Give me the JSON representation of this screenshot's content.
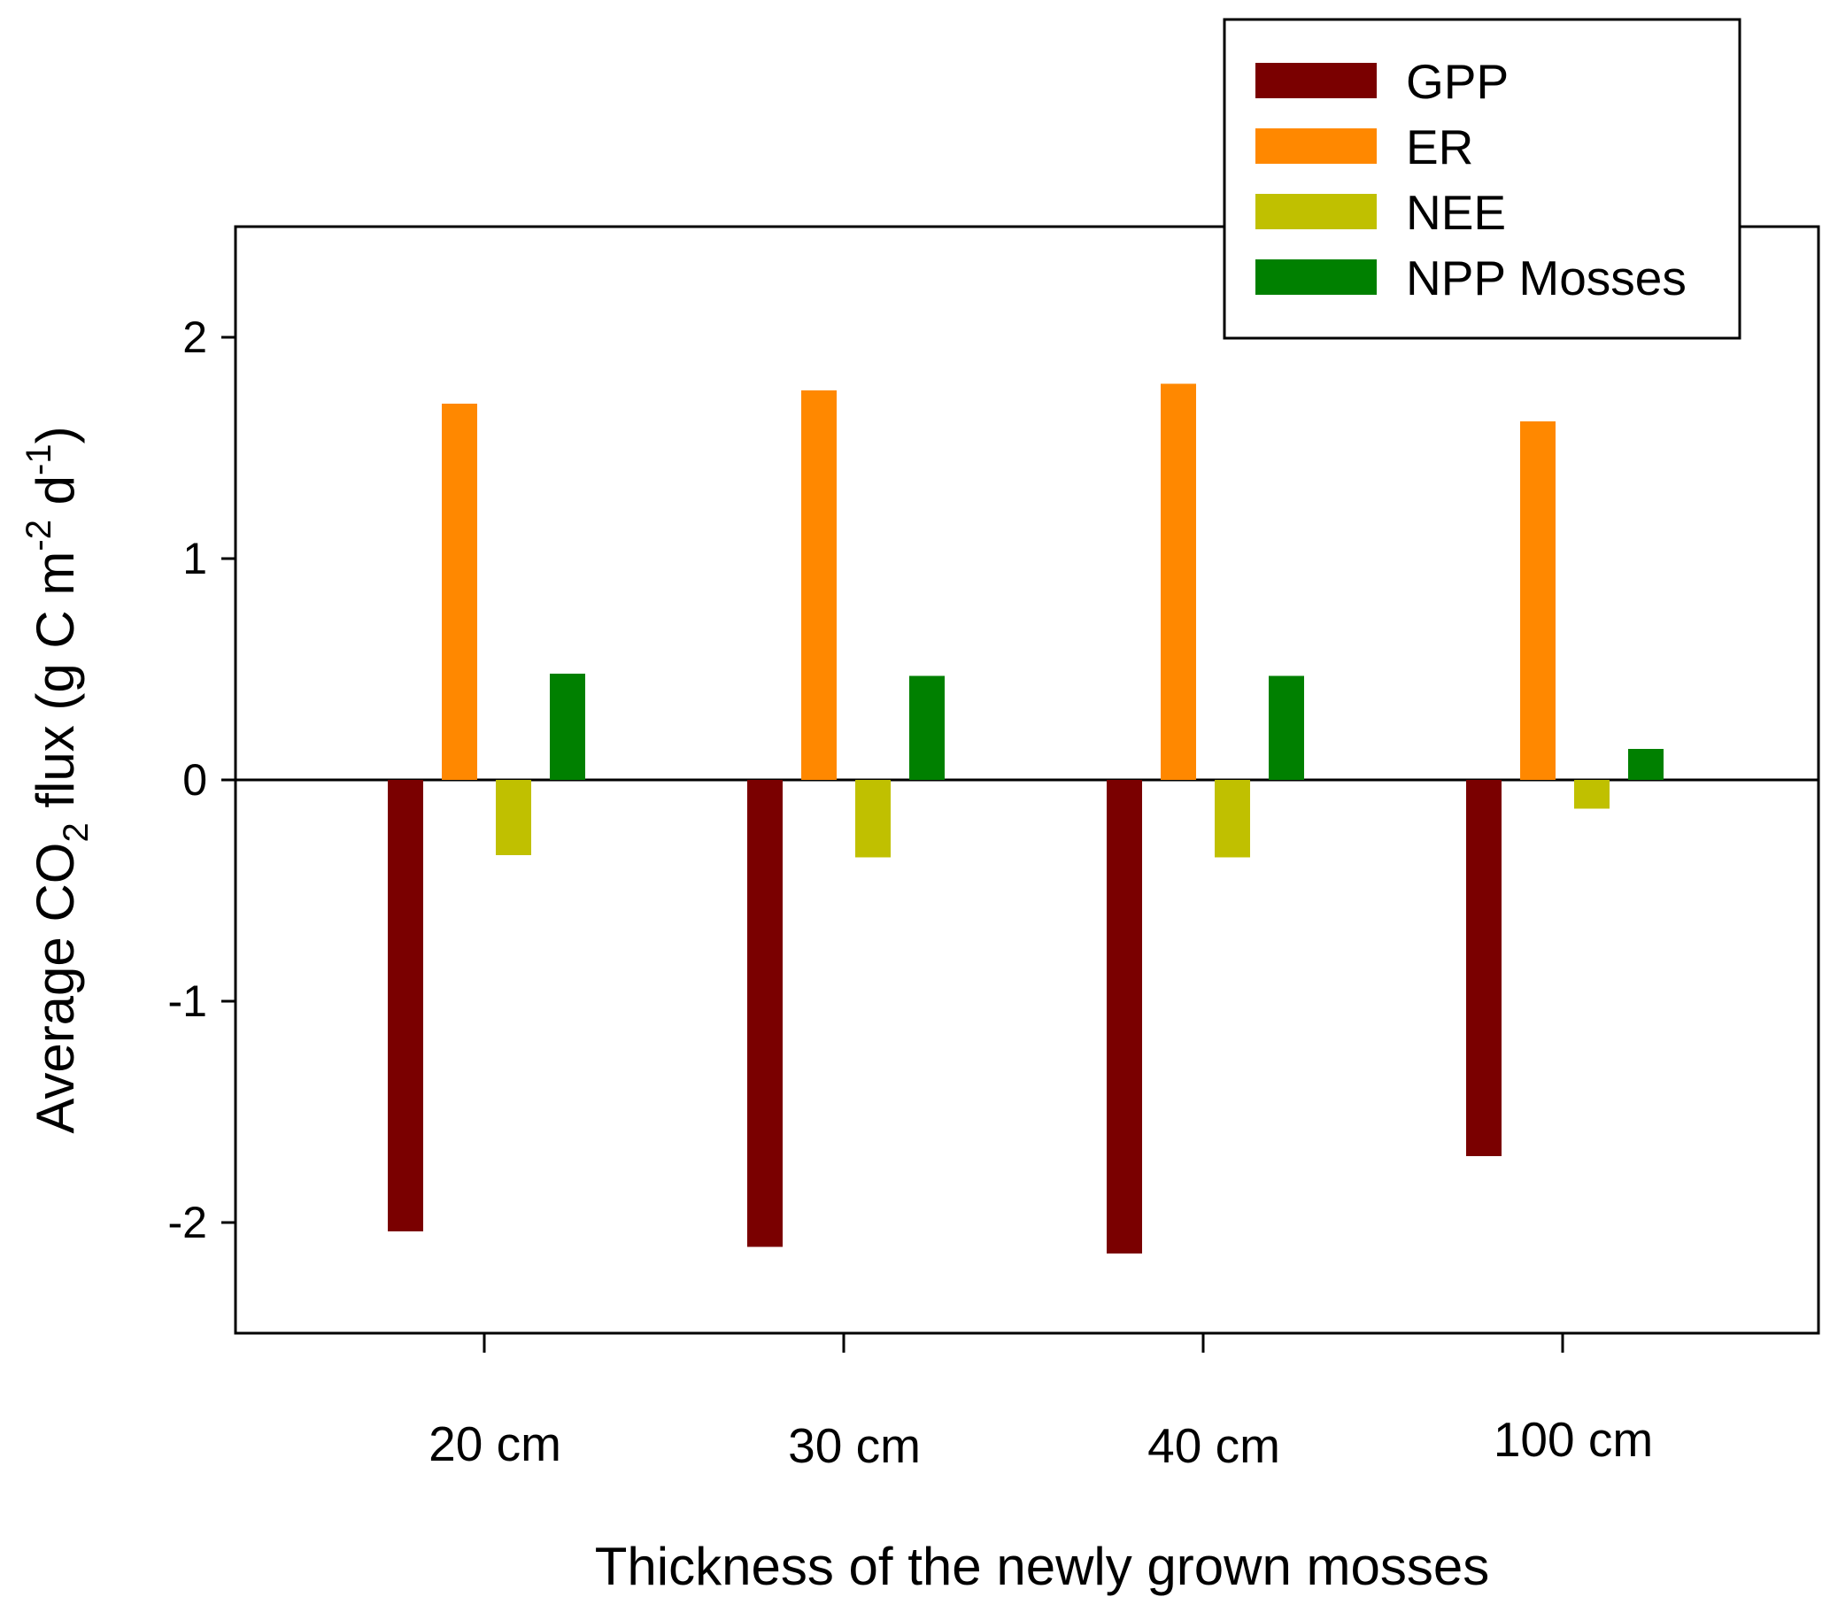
{
  "chart_data": {
    "type": "bar",
    "title": "",
    "xlabel": "Thickness of the newly grown mosses",
    "ylabel": {
      "prefix": "Average CO",
      "sub": "2",
      "middle": " flux (g C m",
      "sup1": "-2",
      "middle2": " d",
      "sup2": "-1",
      "suffix": ")"
    },
    "categories": [
      "20 cm",
      "30 cm",
      "40 cm",
      "100 cm"
    ],
    "ylim": [
      -2.5,
      2.5
    ],
    "yticks": [
      {
        "value": -2,
        "label": "-2"
      },
      {
        "value": -1,
        "label": "-1"
      },
      {
        "value": 0,
        "label": "0"
      },
      {
        "value": 1,
        "label": "1"
      },
      {
        "value": 2,
        "label": "2"
      }
    ],
    "grid": false,
    "zero_line": true,
    "legend_position": "top-right",
    "series": [
      {
        "name": "GPP",
        "color": "#7a0000",
        "values": [
          -2.04,
          -2.11,
          -2.14,
          -1.7
        ]
      },
      {
        "name": "ER",
        "color": "#ff8800",
        "values": [
          1.7,
          1.76,
          1.79,
          1.62
        ]
      },
      {
        "name": "NEE",
        "color": "#c0c000",
        "values": [
          -0.34,
          -0.35,
          -0.35,
          -0.13
        ]
      },
      {
        "name": "NPP Mosses",
        "color": "#008000",
        "values": [
          0.48,
          0.47,
          0.47,
          0.14
        ]
      }
    ]
  }
}
